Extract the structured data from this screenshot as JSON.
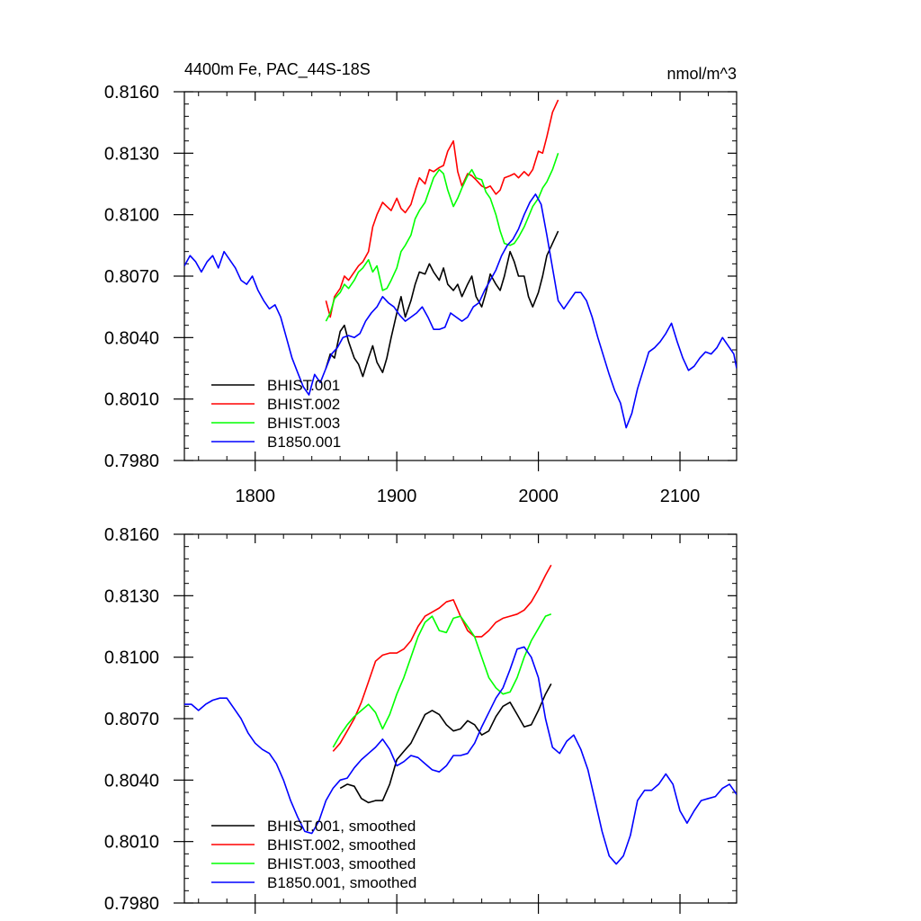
{
  "chart_data": [
    {
      "type": "line",
      "title": "4400m Fe, PAC_44S-18S",
      "units": "nmol/m^3",
      "xlim": [
        1750,
        2140
      ],
      "ylim": [
        0.798,
        0.816
      ],
      "xticks": [
        1800,
        1900,
        2000,
        2100
      ],
      "xtick_labels": [
        "1800",
        "1900",
        "2000",
        "2100"
      ],
      "yticks": [
        0.798,
        0.801,
        0.804,
        0.807,
        0.81,
        0.813,
        0.816
      ],
      "ytick_labels": [
        "0.7980",
        "0.8010",
        "0.8040",
        "0.8070",
        "0.8100",
        "0.8130",
        "0.8160"
      ],
      "legend_position": "bottom-left",
      "series": [
        {
          "name": "BHIST.001",
          "color": "#000000",
          "x": [
            1850,
            1853,
            1856,
            1860,
            1863,
            1866,
            1870,
            1873,
            1876,
            1880,
            1883,
            1886,
            1890,
            1893,
            1896,
            1900,
            1903,
            1906,
            1910,
            1913,
            1916,
            1920,
            1923,
            1926,
            1930,
            1933,
            1936,
            1940,
            1943,
            1946,
            1950,
            1953,
            1956,
            1960,
            1963,
            1966,
            1970,
            1973,
            1976,
            1980,
            1983,
            1986,
            1990,
            1993,
            1996,
            2000,
            2003,
            2006,
            2010,
            2014
          ],
          "y": [
            0.8025,
            0.8032,
            0.803,
            0.8043,
            0.8046,
            0.8038,
            0.803,
            0.8027,
            0.8021,
            0.803,
            0.8036,
            0.8028,
            0.8023,
            0.803,
            0.804,
            0.8052,
            0.806,
            0.805,
            0.8058,
            0.8066,
            0.8072,
            0.8071,
            0.8076,
            0.8072,
            0.8068,
            0.8074,
            0.8066,
            0.8063,
            0.8066,
            0.806,
            0.8066,
            0.807,
            0.806,
            0.8055,
            0.8062,
            0.8071,
            0.8066,
            0.8063,
            0.807,
            0.8082,
            0.8077,
            0.807,
            0.807,
            0.806,
            0.8055,
            0.8062,
            0.807,
            0.808,
            0.8086,
            0.8092
          ]
        },
        {
          "name": "BHIST.002",
          "color": "#ff0000",
          "x": [
            1850,
            1853,
            1856,
            1860,
            1863,
            1866,
            1870,
            1873,
            1876,
            1880,
            1883,
            1886,
            1890,
            1893,
            1896,
            1900,
            1903,
            1906,
            1910,
            1913,
            1916,
            1920,
            1923,
            1926,
            1930,
            1933,
            1936,
            1940,
            1943,
            1946,
            1950,
            1953,
            1956,
            1960,
            1963,
            1966,
            1970,
            1973,
            1976,
            1980,
            1983,
            1986,
            1990,
            1993,
            1996,
            2000,
            2003,
            2006,
            2010,
            2014
          ],
          "y": [
            0.8058,
            0.805,
            0.806,
            0.8064,
            0.807,
            0.8068,
            0.8072,
            0.8075,
            0.8077,
            0.8082,
            0.8094,
            0.81,
            0.8106,
            0.8104,
            0.8102,
            0.8108,
            0.8103,
            0.8101,
            0.8105,
            0.8112,
            0.8118,
            0.8115,
            0.8122,
            0.8121,
            0.8123,
            0.8124,
            0.8131,
            0.8136,
            0.8121,
            0.8114,
            0.812,
            0.8119,
            0.8117,
            0.8114,
            0.8113,
            0.8114,
            0.811,
            0.8112,
            0.8118,
            0.8119,
            0.812,
            0.8118,
            0.8121,
            0.8119,
            0.8122,
            0.8131,
            0.813,
            0.8138,
            0.815,
            0.8156
          ]
        },
        {
          "name": "BHIST.003",
          "color": "#00ff00",
          "x": [
            1850,
            1853,
            1856,
            1860,
            1863,
            1866,
            1870,
            1873,
            1876,
            1880,
            1883,
            1886,
            1890,
            1893,
            1896,
            1900,
            1903,
            1906,
            1910,
            1913,
            1916,
            1920,
            1923,
            1926,
            1930,
            1933,
            1936,
            1940,
            1943,
            1946,
            1950,
            1953,
            1956,
            1960,
            1963,
            1966,
            1970,
            1973,
            1976,
            1980,
            1983,
            1986,
            1990,
            1993,
            1996,
            2000,
            2003,
            2006,
            2010,
            2014
          ],
          "y": [
            0.8048,
            0.8052,
            0.8059,
            0.8062,
            0.8066,
            0.8064,
            0.8068,
            0.8072,
            0.8074,
            0.8078,
            0.8072,
            0.8075,
            0.8063,
            0.8064,
            0.8068,
            0.8074,
            0.8082,
            0.8085,
            0.809,
            0.8098,
            0.8102,
            0.8106,
            0.8112,
            0.8118,
            0.8122,
            0.812,
            0.8112,
            0.8104,
            0.8108,
            0.8113,
            0.8119,
            0.8122,
            0.8118,
            0.8117,
            0.8111,
            0.8108,
            0.81,
            0.8092,
            0.8086,
            0.8085,
            0.8086,
            0.8089,
            0.8094,
            0.8099,
            0.8104,
            0.8108,
            0.8113,
            0.8116,
            0.8122,
            0.813
          ]
        },
        {
          "name": "B1850.001",
          "color": "#0000ff",
          "x": [
            1750,
            1754,
            1758,
            1762,
            1766,
            1770,
            1774,
            1778,
            1782,
            1786,
            1790,
            1794,
            1798,
            1802,
            1806,
            1810,
            1814,
            1818,
            1822,
            1826,
            1830,
            1834,
            1838,
            1842,
            1846,
            1850,
            1854,
            1858,
            1862,
            1866,
            1870,
            1874,
            1878,
            1882,
            1886,
            1890,
            1894,
            1898,
            1902,
            1906,
            1910,
            1914,
            1918,
            1922,
            1926,
            1930,
            1934,
            1938,
            1942,
            1946,
            1950,
            1954,
            1958,
            1962,
            1966,
            1970,
            1974,
            1978,
            1982,
            1986,
            1990,
            1994,
            1998,
            2002,
            2006,
            2010,
            2014,
            2018,
            2022,
            2026,
            2030,
            2034,
            2038,
            2042,
            2046,
            2050,
            2054,
            2058,
            2062,
            2066,
            2070,
            2074,
            2078,
            2082,
            2086,
            2090,
            2094,
            2098,
            2102,
            2106,
            2110,
            2114,
            2118,
            2122,
            2126,
            2130,
            2134,
            2138,
            2140
          ],
          "y": [
            0.8075,
            0.808,
            0.8077,
            0.8072,
            0.8077,
            0.808,
            0.8074,
            0.8082,
            0.8078,
            0.8074,
            0.8068,
            0.8066,
            0.807,
            0.8063,
            0.8058,
            0.8054,
            0.8056,
            0.805,
            0.804,
            0.803,
            0.8023,
            0.8016,
            0.8012,
            0.8022,
            0.8018,
            0.8025,
            0.8032,
            0.8035,
            0.804,
            0.8041,
            0.804,
            0.8042,
            0.8048,
            0.8052,
            0.8055,
            0.806,
            0.8057,
            0.8055,
            0.8051,
            0.8048,
            0.805,
            0.8052,
            0.8055,
            0.805,
            0.8044,
            0.8044,
            0.8045,
            0.8052,
            0.805,
            0.8048,
            0.805,
            0.8055,
            0.8057,
            0.8063,
            0.8068,
            0.8073,
            0.808,
            0.8085,
            0.8088,
            0.8093,
            0.81,
            0.8106,
            0.811,
            0.8105,
            0.809,
            0.8074,
            0.8058,
            0.8054,
            0.8058,
            0.8062,
            0.8062,
            0.8058,
            0.805,
            0.804,
            0.8031,
            0.8022,
            0.8014,
            0.8008,
            0.7996,
            0.8003,
            0.8015,
            0.8024,
            0.8033,
            0.8035,
            0.8038,
            0.8042,
            0.8047,
            0.8038,
            0.803,
            0.8024,
            0.8026,
            0.803,
            0.8033,
            0.8032,
            0.8035,
            0.804,
            0.8036,
            0.8032,
            0.8025
          ]
        }
      ]
    },
    {
      "type": "line",
      "xlim": [
        1750,
        2140
      ],
      "ylim": [
        0.798,
        0.816
      ],
      "xticks": [
        1800,
        1900,
        2000,
        2100
      ],
      "yticks": [
        0.798,
        0.801,
        0.804,
        0.807,
        0.81,
        0.813,
        0.816
      ],
      "ytick_labels": [
        "0.7980",
        "0.8010",
        "0.8040",
        "0.8070",
        "0.8100",
        "0.8130",
        "0.8160"
      ],
      "legend_position": "bottom-left",
      "series": [
        {
          "name": "BHIST.001, smoothed",
          "color": "#000000",
          "x": [
            1860,
            1865,
            1870,
            1875,
            1880,
            1885,
            1890,
            1895,
            1900,
            1905,
            1910,
            1915,
            1920,
            1925,
            1930,
            1935,
            1940,
            1945,
            1950,
            1955,
            1960,
            1965,
            1970,
            1975,
            1980,
            1985,
            1990,
            1995,
            2000,
            2005,
            2009
          ],
          "y": [
            0.8036,
            0.8038,
            0.8037,
            0.8031,
            0.8029,
            0.803,
            0.803,
            0.8038,
            0.805,
            0.8054,
            0.8058,
            0.8065,
            0.8072,
            0.8074,
            0.8072,
            0.8067,
            0.8064,
            0.8065,
            0.8069,
            0.8067,
            0.8062,
            0.8064,
            0.8071,
            0.8076,
            0.8078,
            0.8072,
            0.8066,
            0.8067,
            0.8074,
            0.8082,
            0.8087
          ]
        },
        {
          "name": "BHIST.002, smoothed",
          "color": "#ff0000",
          "x": [
            1855,
            1860,
            1865,
            1870,
            1875,
            1880,
            1885,
            1890,
            1895,
            1900,
            1905,
            1910,
            1915,
            1920,
            1925,
            1930,
            1935,
            1940,
            1945,
            1950,
            1955,
            1960,
            1965,
            1970,
            1975,
            1980,
            1985,
            1990,
            1995,
            2000,
            2005,
            2009
          ],
          "y": [
            0.8054,
            0.8058,
            0.8064,
            0.807,
            0.8078,
            0.8088,
            0.8098,
            0.8101,
            0.8102,
            0.8102,
            0.8104,
            0.8108,
            0.8115,
            0.812,
            0.8122,
            0.8124,
            0.8127,
            0.8128,
            0.812,
            0.8113,
            0.811,
            0.811,
            0.8113,
            0.8117,
            0.8119,
            0.812,
            0.8121,
            0.8123,
            0.8127,
            0.8133,
            0.814,
            0.8145
          ]
        },
        {
          "name": "BHIST.003, smoothed",
          "color": "#00ff00",
          "x": [
            1855,
            1860,
            1865,
            1870,
            1875,
            1880,
            1885,
            1890,
            1895,
            1900,
            1905,
            1910,
            1915,
            1920,
            1925,
            1930,
            1935,
            1940,
            1945,
            1950,
            1955,
            1960,
            1965,
            1970,
            1975,
            1980,
            1985,
            1990,
            1995,
            2000,
            2005,
            2009
          ],
          "y": [
            0.8056,
            0.8062,
            0.8067,
            0.8071,
            0.8074,
            0.8077,
            0.8073,
            0.8065,
            0.8072,
            0.8082,
            0.809,
            0.81,
            0.811,
            0.8117,
            0.812,
            0.8113,
            0.8112,
            0.8119,
            0.812,
            0.8115,
            0.811,
            0.81,
            0.809,
            0.8085,
            0.8082,
            0.8083,
            0.809,
            0.81,
            0.8108,
            0.8114,
            0.812,
            0.8121
          ]
        },
        {
          "name": "B1850.001, smoothed",
          "color": "#0000ff",
          "x": [
            1750,
            1755,
            1760,
            1765,
            1770,
            1775,
            1780,
            1785,
            1790,
            1795,
            1800,
            1805,
            1810,
            1815,
            1820,
            1825,
            1830,
            1835,
            1840,
            1845,
            1850,
            1855,
            1860,
            1865,
            1870,
            1875,
            1880,
            1885,
            1890,
            1895,
            1900,
            1905,
            1910,
            1915,
            1920,
            1925,
            1930,
            1935,
            1940,
            1945,
            1950,
            1955,
            1960,
            1965,
            1970,
            1975,
            1980,
            1985,
            1990,
            1995,
            2000,
            2005,
            2010,
            2015,
            2020,
            2025,
            2030,
            2035,
            2040,
            2045,
            2050,
            2055,
            2060,
            2065,
            2070,
            2075,
            2080,
            2085,
            2090,
            2095,
            2100,
            2105,
            2110,
            2115,
            2120,
            2125,
            2130,
            2135,
            2140
          ],
          "y": [
            0.8077,
            0.8077,
            0.8074,
            0.8077,
            0.8079,
            0.808,
            0.808,
            0.8075,
            0.807,
            0.8063,
            0.8058,
            0.8055,
            0.8053,
            0.8048,
            0.804,
            0.803,
            0.8022,
            0.8015,
            0.8014,
            0.802,
            0.803,
            0.8036,
            0.804,
            0.8041,
            0.8046,
            0.805,
            0.8053,
            0.8056,
            0.806,
            0.8055,
            0.8047,
            0.8049,
            0.8052,
            0.8051,
            0.8048,
            0.8045,
            0.8044,
            0.8047,
            0.8052,
            0.8052,
            0.8053,
            0.8058,
            0.8066,
            0.8073,
            0.808,
            0.8085,
            0.8094,
            0.8104,
            0.8105,
            0.81,
            0.809,
            0.807,
            0.8056,
            0.8053,
            0.8059,
            0.8062,
            0.8055,
            0.8045,
            0.803,
            0.8015,
            0.8003,
            0.7999,
            0.8003,
            0.8013,
            0.803,
            0.8035,
            0.8035,
            0.8038,
            0.8043,
            0.8038,
            0.8025,
            0.8019,
            0.8025,
            0.803,
            0.8031,
            0.8032,
            0.8036,
            0.8038,
            0.8033
          ]
        }
      ]
    }
  ]
}
